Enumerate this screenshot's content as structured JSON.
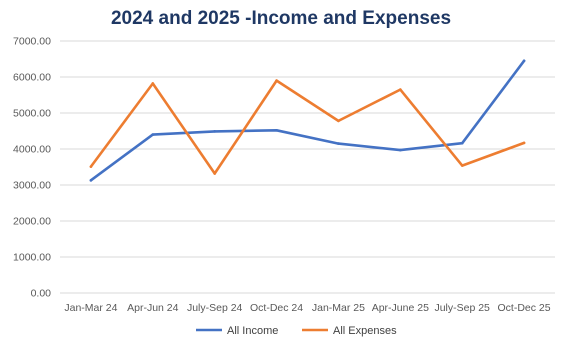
{
  "chart_data": {
    "type": "line",
    "title": "2024 and 2025 -Income and Expenses",
    "categories": [
      "Jan-Mar 24",
      "Apr-Jun 24",
      "July-Sep 24",
      "Oct-Dec 24",
      "Jan-Mar 25",
      "Apr-June 25",
      "July-Sep 25",
      "Oct-Dec 25"
    ],
    "ylim": [
      0,
      7000
    ],
    "yticks": [
      "0.00",
      "1000.00",
      "2000.00",
      "3000.00",
      "4000.00",
      "5000.00",
      "6000.00",
      "7000.00"
    ],
    "grid": true,
    "legend": "bottom",
    "series": [
      {
        "name": "All Income",
        "color": "#4472c4",
        "values": [
          3130,
          4400,
          4490,
          4520,
          4150,
          3970,
          4160,
          6450
        ]
      },
      {
        "name": "All Expenses",
        "color": "#ed7d31",
        "values": [
          3510,
          5820,
          3320,
          5900,
          4780,
          5650,
          3540,
          4170
        ]
      }
    ]
  }
}
